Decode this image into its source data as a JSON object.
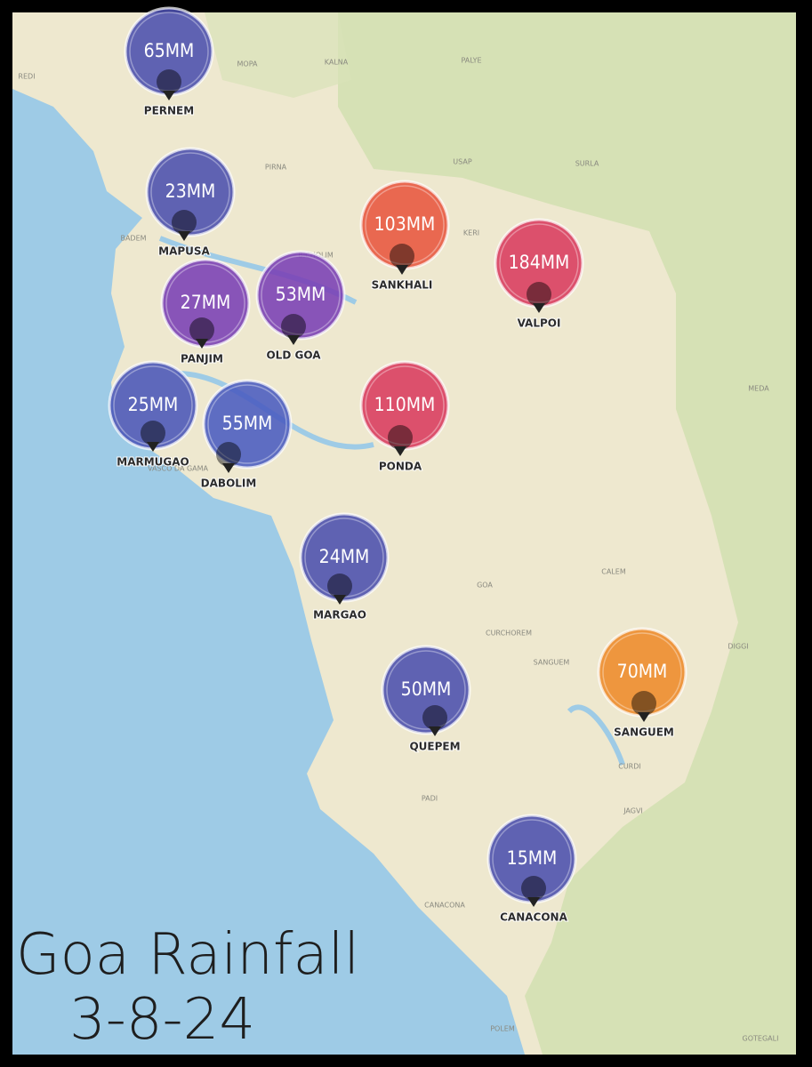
{
  "title": "Goa Rainfall",
  "date": "3-8-24",
  "markers": [
    {
      "place": "PERNEM",
      "rainfall": "65MM",
      "color": "#4b4fae"
    },
    {
      "place": "MAPUSA",
      "rainfall": "23MM",
      "color": "#4b4fae"
    },
    {
      "place": "SANKHALI",
      "rainfall": "103MM",
      "color": "#e8553f"
    },
    {
      "place": "VALPOI",
      "rainfall": "184MM",
      "color": "#da3a5f"
    },
    {
      "place": "PANJIM",
      "rainfall": "27MM",
      "color": "#7a3fb5"
    },
    {
      "place": "OLD GOA",
      "rainfall": "53MM",
      "color": "#7a3fb5"
    },
    {
      "place": "MARMUGAO",
      "rainfall": "25MM",
      "color": "#4a55b8"
    },
    {
      "place": "DABOLIM",
      "rainfall": "55MM",
      "color": "#4a5bc0"
    },
    {
      "place": "PONDA",
      "rainfall": "110MM",
      "color": "#da3a5f"
    },
    {
      "place": "MARGAO",
      "rainfall": "24MM",
      "color": "#4b4fae"
    },
    {
      "place": "QUEPEM",
      "rainfall": "50MM",
      "color": "#4b4fae"
    },
    {
      "place": "SANGUEM",
      "rainfall": "70MM",
      "color": "#ee8a2a"
    },
    {
      "place": "CANACONA",
      "rainfall": "15MM",
      "color": "#4b4fae"
    }
  ],
  "map_labels": [
    "REDI",
    "MOPA",
    "KALNA",
    "PALYE",
    "PIRNA",
    "BADEM",
    "USAP",
    "SURLA",
    "KERI",
    "BICHOLIM",
    "VASCO DA GAMA",
    "GOA",
    "CALEM",
    "CURCHOREM",
    "SANGUEM",
    "DIGGI",
    "MEDA",
    "CURDI",
    "JAGVI",
    "PADI",
    "CANACONA",
    "POLEM",
    "GOTEGALI"
  ]
}
